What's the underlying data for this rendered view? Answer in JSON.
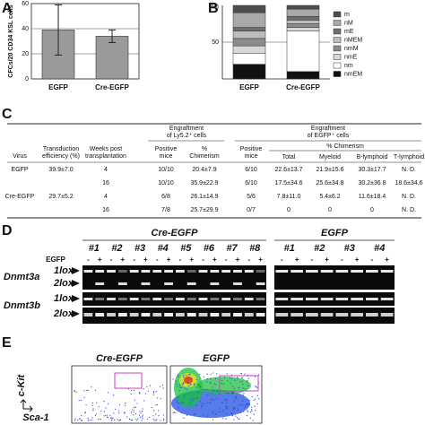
{
  "panels": [
    "A",
    "B",
    "C",
    "D",
    "E"
  ],
  "chart_data": [
    {
      "type": "bar",
      "ylabel": "CFCs/20 CD34 KSL cells",
      "categories": [
        "EGFP",
        "Cre-EGFP"
      ],
      "values": [
        39,
        34
      ],
      "errors": [
        20,
        5
      ],
      "color": "#9a9a9a",
      "ylim": [
        0,
        60
      ],
      "yticks": [
        0,
        20,
        40,
        60
      ],
      "grid": true
    },
    {
      "type": "stacked_bar",
      "ylabel": "(%)",
      "categories": [
        "EGFP",
        "Cre-EGFP"
      ],
      "ylim": [
        0,
        100
      ],
      "yticks": [
        50
      ],
      "grid": true,
      "series": [
        {
          "name": "nmEM",
          "color": "#111111",
          "values": [
            20,
            10
          ]
        },
        {
          "name": "nm",
          "color": "#ffffff",
          "values": [
            15,
            55
          ]
        },
        {
          "name": "nmE",
          "color": "#d8d8d8",
          "values": [
            10,
            5
          ]
        },
        {
          "name": "nmM",
          "color": "#8c8c8c",
          "values": [
            10,
            5
          ]
        },
        {
          "name": "nMEM",
          "color": "#bdbdbd",
          "values": [
            10,
            5
          ]
        },
        {
          "name": "mE",
          "color": "#6e6e6e",
          "values": [
            5,
            5
          ]
        },
        {
          "name": "nM",
          "color": "#a9a9a9",
          "values": [
            20,
            10
          ]
        },
        {
          "name": "m",
          "color": "#4d4d4d",
          "values": [
            10,
            5
          ]
        }
      ]
    }
  ],
  "table": {
    "headers": [
      [
        "Virus"
      ],
      [
        "Transduction",
        "efficiency (%)"
      ],
      [
        "Weeks post",
        "transplantation"
      ],
      [
        "Engraftment",
        "of Ly5.2⁺ cells"
      ],
      [
        "Positive",
        "mice"
      ],
      [
        "%",
        "Chimerism"
      ],
      [
        "Engraftment",
        "of EGFP⁺ cells"
      ],
      [
        "Positive",
        "mice"
      ],
      [
        "% Chimerism"
      ],
      [
        "Total"
      ],
      [
        "Myeloid"
      ],
      [
        "B-lymphoid"
      ],
      [
        "T-lymphoid"
      ]
    ],
    "rows": [
      [
        "EGFP",
        "39.9±7.0",
        "4",
        "10/10",
        "20.4±7.9",
        "6/10",
        "22.6±13.7",
        "21.9±15.6",
        "30.3±17.7",
        "N. D."
      ],
      [
        null,
        null,
        "16",
        "10/10",
        "35.9±22.9",
        "6/10",
        "17.5±34.6",
        "25.6±34.8",
        "30.2±36.8",
        "18.6±34.6"
      ],
      [
        "Cre-EGFP",
        "29.7±5.2",
        "4",
        "6/8",
        "26.1±14.9",
        "5/6",
        "7.8±11.0",
        "5.4±6.2",
        "11.6±18.4",
        "N. D."
      ],
      [
        null,
        null,
        "16",
        "7/8",
        "25.7±29.9",
        "0/7",
        "0",
        "0",
        "0",
        "N. D."
      ]
    ]
  },
  "gel": {
    "groups": [
      {
        "title": "Cre-EGFP",
        "lanes": [
          "#1",
          "#2",
          "#3",
          "#4",
          "#5",
          "#6",
          "#7",
          "#8"
        ]
      },
      {
        "title": "EGFP",
        "lanes": [
          "#1",
          "#2",
          "#3",
          "#4"
        ]
      }
    ],
    "row_label": "EGFP",
    "signs": [
      "-",
      "+"
    ],
    "genes": [
      "Dnmt3a",
      "Dnmt3b"
    ],
    "bands": [
      "1lox",
      "2lox"
    ]
  },
  "facs": {
    "plots": [
      "Cre-EGFP",
      "EGFP"
    ],
    "ylabel": "c-Kit",
    "xlabel": "Sca-1"
  }
}
